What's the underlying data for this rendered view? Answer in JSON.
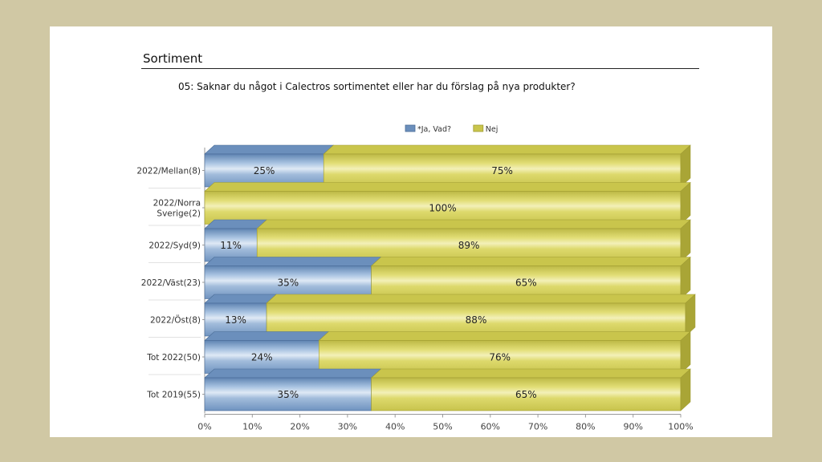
{
  "slide": {
    "section_title": "Sortiment",
    "question": "05: Saknar du något i Calectros sortimentet eller har du förslag på nya produkter?"
  },
  "colors": {
    "page_background": "#d0c8a4",
    "series_ja": "#7fa3cb",
    "series_nej": "#d4d05c"
  },
  "chart_data": {
    "type": "bar",
    "orientation": "horizontal",
    "stacked": "percent",
    "style": "3d",
    "categories": [
      [
        "2022/Mellan(8)"
      ],
      [
        "2022/Norra",
        "Sverige(2)"
      ],
      [
        "2022/Syd(9)"
      ],
      [
        "2022/Väst(23)"
      ],
      [
        "2022/Öst(8)"
      ],
      [
        "Tot 2022(50)"
      ],
      [
        "Tot 2019(55)"
      ]
    ],
    "series": [
      {
        "name": "*Ja, Vad?",
        "color": "#7fa3cb",
        "values": [
          25,
          0,
          11,
          35,
          13,
          24,
          35
        ],
        "labels": [
          "25%",
          "",
          "11%",
          "35%",
          "13%",
          "24%",
          "35%"
        ]
      },
      {
        "name": "Nej",
        "color": "#d4d05c",
        "values": [
          75,
          100,
          89,
          65,
          88,
          76,
          65
        ],
        "labels": [
          "75%",
          "100%",
          "89%",
          "65%",
          "88%",
          "76%",
          "65%"
        ]
      }
    ],
    "x_ticks": [
      "0%",
      "10%",
      "20%",
      "30%",
      "40%",
      "50%",
      "60%",
      "70%",
      "80%",
      "90%",
      "100%"
    ],
    "xlim": [
      0,
      100
    ],
    "legend_position": "top-center",
    "grid": false
  }
}
